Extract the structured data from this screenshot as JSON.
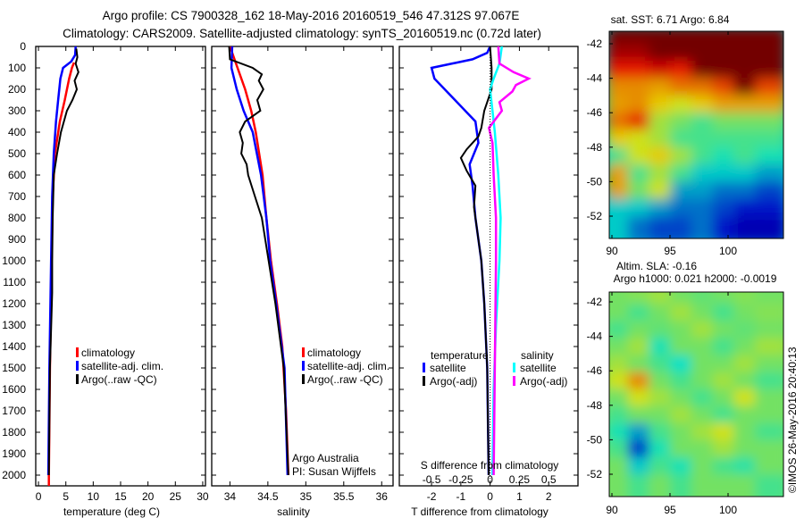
{
  "title_line1": "Argo profile: CS 7900328_162 18-May-2016 20160519_546 47.312S 97.067E",
  "title_line2": "Climatology: CARS2009. Satellite-adjusted climatology: synTS_20160519.nc (0.72d later)",
  "copyright": "©IMOS 26-May-2016 20:40:13",
  "colors": {
    "climatology": "#ff0000",
    "satellite": "#0000ff",
    "argo": "#000000",
    "s_satellite": "#00ffff",
    "s_argo": "#ff00ff"
  },
  "chart_data": [
    {
      "type": "line",
      "name": "temperature-profile",
      "xlabel": "temperature (deg C)",
      "ylabel": "",
      "xlim": [
        -0.5,
        30.5
      ],
      "ylim": [
        2050,
        0
      ],
      "xticks": [
        0,
        5,
        10,
        15,
        20,
        25,
        30
      ],
      "yticks": [
        0,
        100,
        200,
        300,
        400,
        500,
        600,
        700,
        800,
        900,
        1000,
        1100,
        1200,
        1300,
        1400,
        1500,
        1600,
        1700,
        1800,
        1900,
        2000
      ],
      "legend": [
        "climatology",
        "satellite-adj. clim.",
        "Argo(..raw -QC)"
      ],
      "legend_position": "center",
      "series": [
        {
          "name": "climatology",
          "color": "#ff0000",
          "depth": [
            75,
            100,
            150,
            250,
            350,
            500,
            700,
            1000,
            1500,
            2000,
            2050
          ],
          "values": [
            6.5,
            6.1,
            5.6,
            4.8,
            3.9,
            3.0,
            2.6,
            2.4,
            2.1,
            1.9,
            1.9
          ]
        },
        {
          "name": "satellite-adj. clim.",
          "color": "#0000ff",
          "depth": [
            0,
            40,
            70,
            100,
            150,
            250,
            350,
            500,
            700,
            1000,
            1500,
            2000
          ],
          "values": [
            6.8,
            6.7,
            6.0,
            4.5,
            4.0,
            3.6,
            3.2,
            2.8,
            2.5,
            2.3,
            2.0,
            1.8
          ]
        },
        {
          "name": "Argo(..raw -QC)",
          "color": "#000000",
          "depth": [
            10,
            50,
            80,
            120,
            160,
            200,
            250,
            300,
            400,
            500,
            600,
            800,
            1000,
            1150,
            1500,
            2000
          ],
          "values": [
            6.9,
            7.1,
            6.8,
            7.3,
            6.6,
            7.0,
            6.2,
            5.2,
            4.1,
            3.4,
            2.8,
            2.6,
            2.5,
            2.5,
            2.1,
            1.9
          ]
        }
      ]
    },
    {
      "type": "line",
      "name": "salinity-profile",
      "xlabel": "salinity",
      "xlim": [
        33.76,
        36.15
      ],
      "ylim": [
        2050,
        0
      ],
      "xticks": [
        34,
        34.5,
        35,
        35.5,
        36
      ],
      "legend": [
        "climatology",
        "satellite-adj. clim.",
        "Argo(..raw -QC)"
      ],
      "annotations": [
        "Argo Australia",
        "PI: Susan Wijffels"
      ],
      "series": [
        {
          "name": "climatology",
          "color": "#ff0000",
          "depth": [
            0,
            100,
            200,
            300,
            400,
            600,
            800,
            1000,
            1200,
            1400,
            1700,
            2000
          ],
          "values": [
            34.0,
            34.1,
            34.2,
            34.28,
            34.34,
            34.43,
            34.48,
            34.54,
            34.62,
            34.69,
            34.74,
            34.77
          ]
        },
        {
          "name": "satellite-adj. clim.",
          "color": "#0000ff",
          "depth": [
            0,
            100,
            200,
            300,
            400,
            600,
            800,
            1000,
            1200,
            1500,
            2000
          ],
          "values": [
            34.03,
            34.02,
            34.09,
            34.18,
            34.3,
            34.41,
            34.48,
            34.53,
            34.61,
            34.72,
            34.76
          ]
        },
        {
          "name": "Argo(..raw -QC)",
          "color": "#000000",
          "depth": [
            0,
            60,
            100,
            130,
            160,
            200,
            250,
            300,
            350,
            400,
            450,
            500,
            550,
            600,
            700,
            800,
            1000,
            1200,
            1500,
            2000
          ],
          "values": [
            33.99,
            34.0,
            34.3,
            34.42,
            34.38,
            34.44,
            34.36,
            34.4,
            34.2,
            34.13,
            34.17,
            34.15,
            34.22,
            34.24,
            34.33,
            34.42,
            34.51,
            34.6,
            34.71,
            34.77
          ]
        }
      ]
    },
    {
      "type": "line",
      "name": "difference-profile",
      "xlabel": "T difference from climatology",
      "xlabel_top": "S difference from climatology",
      "xlim": [
        -3.1,
        3.0
      ],
      "ylim": [
        2050,
        0
      ],
      "xticks": [
        -2,
        -1,
        0,
        1,
        2
      ],
      "s_ticks": [
        -0.5,
        -0.25,
        0,
        0.25,
        0.5
      ],
      "s_tick_labels": [
        "-0.5",
        "-0.25",
        "0",
        "0.25",
        "0.5"
      ],
      "legend_headers": [
        "temperature",
        "salinity"
      ],
      "legend": [
        "satellite",
        "Argo(-adj)",
        "satellite",
        "Argo(-adj)"
      ],
      "series": [
        {
          "name": "T satellite",
          "color": "#0000ff",
          "var": "T",
          "depth": [
            0,
            30,
            60,
            100,
            150,
            250,
            350,
            450,
            550,
            650,
            800,
            1000,
            1200,
            1500,
            2000
          ],
          "values": [
            0.0,
            -0.1,
            -0.6,
            -2.0,
            -1.9,
            -1.2,
            -0.5,
            -0.4,
            -0.7,
            -0.6,
            -0.5,
            -0.3,
            -0.2,
            -0.1,
            -0.05
          ]
        },
        {
          "name": "T Argo(-adj)",
          "color": "#000000",
          "var": "T",
          "depth": [
            0,
            100,
            200,
            300,
            380,
            420,
            480,
            520,
            580,
            650,
            750,
            900,
            1000,
            1200,
            1500,
            2000
          ],
          "values": [
            0.0,
            0.05,
            0.05,
            -0.2,
            -0.3,
            -0.4,
            -0.8,
            -1.0,
            -0.8,
            -0.5,
            -0.55,
            -0.4,
            -0.3,
            -0.2,
            -0.1,
            -0.05
          ]
        },
        {
          "name": "S satellite",
          "color": "#00ffff",
          "var": "S",
          "depth": [
            0,
            80,
            150,
            200,
            300,
            400,
            600,
            800,
            1000,
            1300,
            1600,
            2000
          ],
          "values": [
            0.1,
            0.08,
            0.03,
            0.0,
            0.02,
            0.04,
            0.07,
            0.09,
            0.08,
            0.05,
            0.03,
            0.02
          ]
        },
        {
          "name": "S Argo(-adj)",
          "color": "#ff00ff",
          "var": "S",
          "depth": [
            0,
            80,
            120,
            150,
            180,
            210,
            260,
            300,
            380,
            450,
            600,
            800,
            1000,
            1500,
            2000
          ],
          "values": [
            0.07,
            0.08,
            0.2,
            0.33,
            0.22,
            0.19,
            0.08,
            0.1,
            -0.01,
            0.02,
            0.03,
            0.05,
            0.05,
            0.04,
            0.03
          ]
        }
      ]
    },
    {
      "type": "heatmap",
      "name": "sst-map",
      "title": "sat. SST: 6.71 Argo: 6.84",
      "xticks": [
        90,
        95,
        100
      ],
      "yticks": [
        -42,
        -44,
        -46,
        -48,
        -50,
        -52
      ],
      "lon_range": [
        90,
        104.6
      ],
      "lat_range": [
        -41.3,
        -53.3
      ],
      "values": [
        [
          1,
          1,
          1,
          1,
          1,
          1,
          1,
          1
        ],
        [
          0.95,
          0.95,
          1,
          1,
          1,
          1,
          1,
          1
        ],
        [
          0.85,
          0.85,
          0.9,
          0.85,
          1,
          1,
          1,
          1
        ],
        [
          0.72,
          0.72,
          0.7,
          0.75,
          0.75,
          0.8,
          1,
          0.8
        ],
        [
          0.7,
          0.72,
          0.65,
          0.6,
          0.65,
          0.7,
          0.7,
          0.7
        ],
        [
          0.75,
          0.85,
          0.55,
          0.5,
          0.45,
          0.5,
          0.5,
          0.5
        ],
        [
          0.65,
          0.6,
          0.55,
          0.45,
          0.45,
          0.45,
          0.45,
          0.45
        ],
        [
          0.45,
          0.6,
          0.65,
          0.55,
          0.45,
          0.4,
          0.45,
          0.4
        ],
        [
          0.7,
          0.45,
          0.55,
          0.45,
          0.35,
          0.35,
          0.35,
          0.3
        ],
        [
          0.7,
          0.5,
          0.6,
          0.3,
          0.3,
          0.25,
          0.25,
          0.2
        ],
        [
          0.35,
          0.35,
          0.3,
          0.25,
          0.25,
          0.2,
          0.15,
          0.15
        ],
        [
          0.35,
          0.25,
          0.2,
          0.2,
          0.25,
          0.15,
          0.1,
          0.1
        ]
      ]
    },
    {
      "type": "heatmap",
      "name": "sla-map",
      "title": "Altim. SLA: -0.16",
      "subtitle": "Argo h1000: 0.021 h2000: -0.0019",
      "xticks": [
        90,
        95,
        100
      ],
      "yticks": [
        -42,
        -44,
        -46,
        -48,
        -50,
        -52
      ],
      "lon_range": [
        90,
        104.6
      ],
      "lat_range": [
        -41.3,
        -53.3
      ],
      "values": [
        [
          0.5,
          0.52,
          0.55,
          0.5,
          0.48,
          0.5,
          0.52,
          0.5
        ],
        [
          0.5,
          0.45,
          0.5,
          0.55,
          0.5,
          0.45,
          0.5,
          0.52
        ],
        [
          0.45,
          0.5,
          0.48,
          0.5,
          0.55,
          0.5,
          0.48,
          0.5
        ],
        [
          0.5,
          0.55,
          0.4,
          0.5,
          0.5,
          0.45,
          0.5,
          0.55
        ],
        [
          0.55,
          0.5,
          0.45,
          0.38,
          0.5,
          0.5,
          0.55,
          0.5
        ],
        [
          0.6,
          0.72,
          0.5,
          0.45,
          0.5,
          0.55,
          0.5,
          0.45
        ],
        [
          0.5,
          0.6,
          0.55,
          0.5,
          0.45,
          0.5,
          0.6,
          0.5
        ],
        [
          0.45,
          0.5,
          0.5,
          0.55,
          0.5,
          0.45,
          0.5,
          0.5
        ],
        [
          0.4,
          0.3,
          0.45,
          0.5,
          0.55,
          0.6,
          0.5,
          0.45
        ],
        [
          0.45,
          0.2,
          0.4,
          0.5,
          0.5,
          0.55,
          0.5,
          0.5
        ],
        [
          0.5,
          0.35,
          0.45,
          0.4,
          0.5,
          0.45,
          0.42,
          0.5
        ],
        [
          0.5,
          0.45,
          0.5,
          0.45,
          0.5,
          0.5,
          0.5,
          0.45
        ]
      ]
    }
  ]
}
